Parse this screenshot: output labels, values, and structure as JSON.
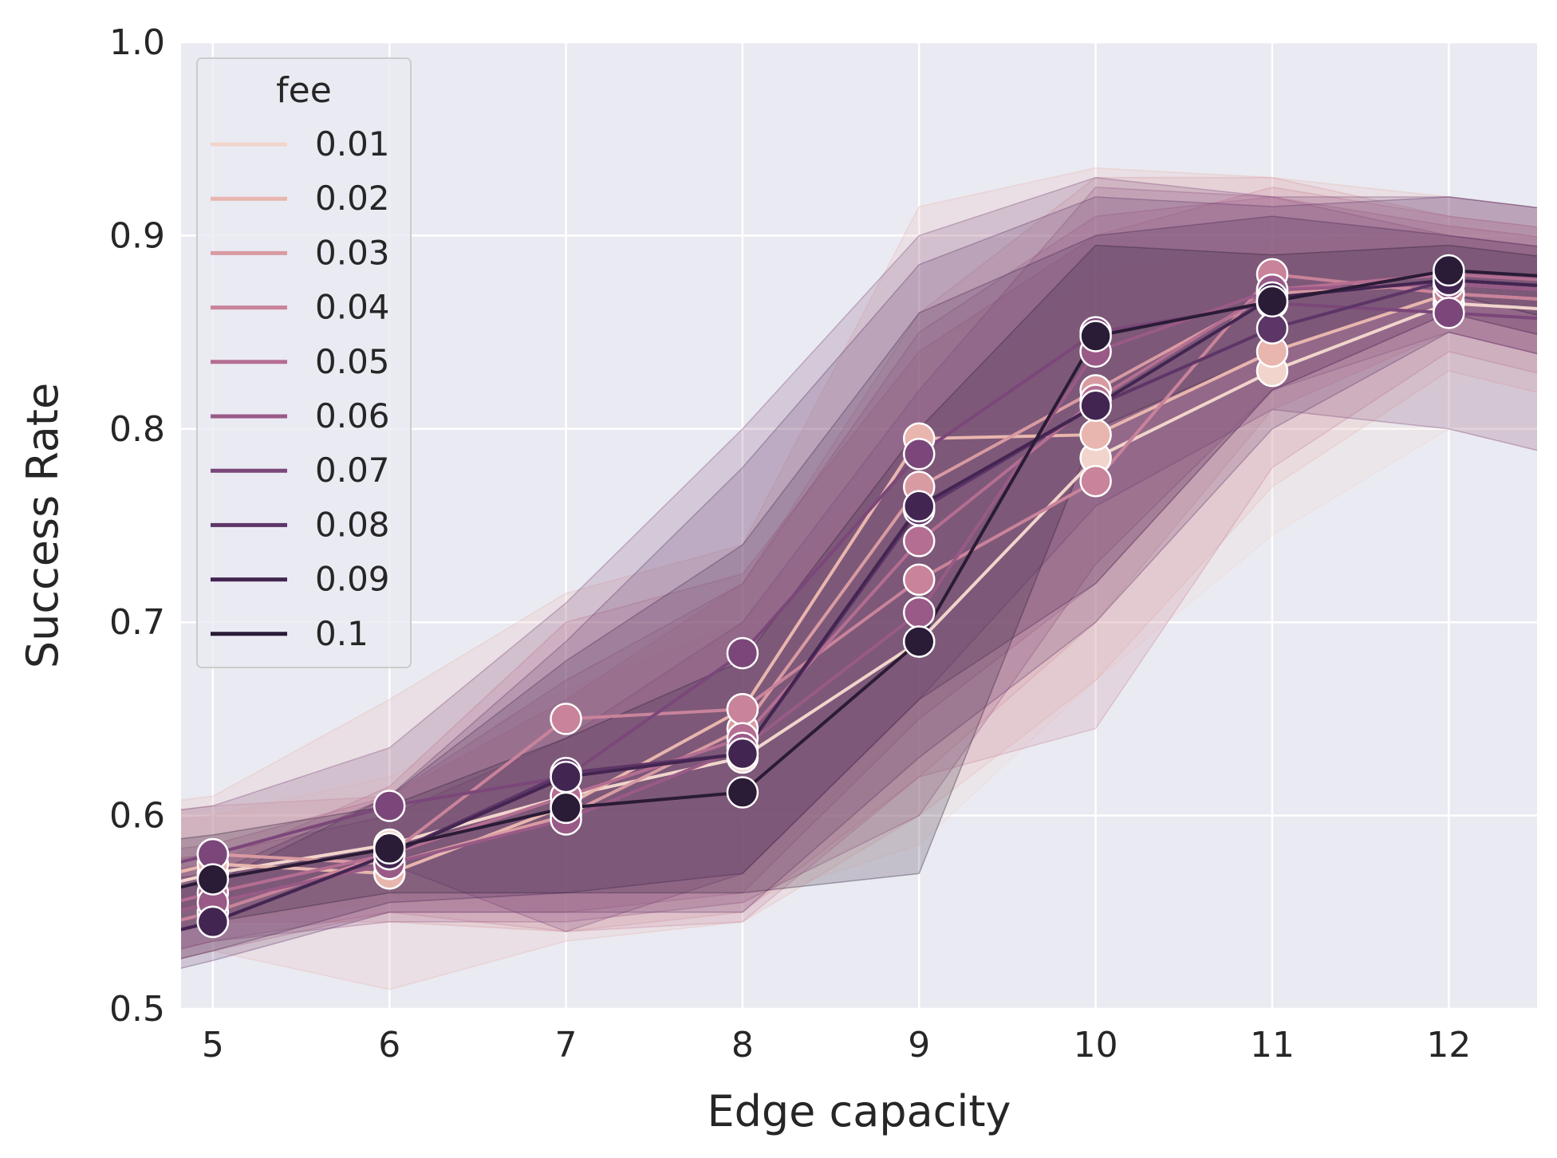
{
  "chart_data": {
    "type": "line",
    "xlabel": "Edge capacity",
    "ylabel": "Success Rate",
    "x": [
      5,
      6,
      7,
      8,
      9,
      10,
      11,
      12
    ],
    "xlim": [
      4.82,
      12.5
    ],
    "ylim": [
      0.5,
      1.0
    ],
    "yticks": [
      "0.5",
      "0.6",
      "0.7",
      "0.8",
      "0.9",
      "1.0"
    ],
    "xticks": [
      "5",
      "6",
      "7",
      "8",
      "9",
      "10",
      "11",
      "12"
    ],
    "grid": true,
    "background": "#eaeaf2",
    "legend": {
      "title": "fee",
      "placement": "top-left"
    },
    "series": [
      {
        "name": "0.01",
        "color": "#f1d5cc",
        "values": [
          0.57,
          0.585,
          0.61,
          0.63,
          0.69,
          0.785,
          0.83,
          0.865
        ],
        "lower": [
          0.545,
          0.555,
          0.55,
          0.555,
          0.585,
          0.67,
          0.745,
          0.8
        ],
        "upper": [
          0.6,
          0.62,
          0.665,
          0.7,
          0.8,
          0.88,
          0.895,
          0.905
        ]
      },
      {
        "name": "0.02",
        "color": "#e8b6ae",
        "values": [
          0.575,
          0.57,
          0.605,
          0.655,
          0.795,
          0.797,
          0.84,
          0.87
        ],
        "lower": [
          0.53,
          0.51,
          0.535,
          0.545,
          0.6,
          0.67,
          0.77,
          0.83
        ],
        "upper": [
          0.61,
          0.66,
          0.715,
          0.74,
          0.915,
          0.935,
          0.93,
          0.92
        ]
      },
      {
        "name": "0.03",
        "color": "#d89ba2",
        "values": [
          0.58,
          0.575,
          0.6,
          0.645,
          0.77,
          0.82,
          0.87,
          0.875
        ],
        "lower": [
          0.545,
          0.545,
          0.54,
          0.55,
          0.62,
          0.7,
          0.81,
          0.85
        ],
        "upper": [
          0.605,
          0.61,
          0.66,
          0.72,
          0.86,
          0.93,
          0.93,
          0.91
        ]
      },
      {
        "name": "0.04",
        "color": "#c9839a",
        "values": [
          0.55,
          0.58,
          0.65,
          0.655,
          0.722,
          0.773,
          0.88,
          0.87
        ],
        "lower": [
          0.53,
          0.55,
          0.54,
          0.545,
          0.62,
          0.645,
          0.78,
          0.84
        ],
        "upper": [
          0.575,
          0.615,
          0.7,
          0.725,
          0.84,
          0.9,
          0.925,
          0.91
        ]
      },
      {
        "name": "0.05",
        "color": "#b46e92",
        "values": [
          0.56,
          0.58,
          0.61,
          0.64,
          0.742,
          0.815,
          0.872,
          0.88
        ],
        "lower": [
          0.535,
          0.55,
          0.55,
          0.56,
          0.65,
          0.72,
          0.82,
          0.86
        ],
        "upper": [
          0.585,
          0.61,
          0.67,
          0.72,
          0.85,
          0.91,
          0.92,
          0.905
        ]
      },
      {
        "name": "0.06",
        "color": "#995a87",
        "values": [
          0.555,
          0.575,
          0.598,
          0.635,
          0.705,
          0.84,
          0.872,
          0.875
        ],
        "lower": [
          0.535,
          0.545,
          0.545,
          0.555,
          0.6,
          0.73,
          0.82,
          0.85
        ],
        "upper": [
          0.58,
          0.6,
          0.64,
          0.7,
          0.82,
          0.925,
          0.92,
          0.9
        ]
      },
      {
        "name": "0.07",
        "color": "#7b477a",
        "values": [
          0.58,
          0.605,
          0.62,
          0.684,
          0.787,
          0.85,
          0.865,
          0.86
        ],
        "lower": [
          0.555,
          0.575,
          0.54,
          0.57,
          0.66,
          0.76,
          0.81,
          0.8
        ],
        "upper": [
          0.605,
          0.635,
          0.71,
          0.8,
          0.9,
          0.93,
          0.92,
          0.92
        ]
      },
      {
        "name": "0.08",
        "color": "#5d3567",
        "values": [
          0.545,
          0.58,
          0.622,
          0.632,
          0.758,
          0.812,
          0.852,
          0.877
        ],
        "lower": [
          0.525,
          0.55,
          0.55,
          0.55,
          0.63,
          0.7,
          0.8,
          0.85
        ],
        "upper": [
          0.57,
          0.61,
          0.69,
          0.78,
          0.885,
          0.92,
          0.915,
          0.92
        ]
      },
      {
        "name": "0.09",
        "color": "#432551",
        "values": [
          0.545,
          0.58,
          0.62,
          0.632,
          0.76,
          0.812,
          0.868,
          0.877
        ],
        "lower": [
          0.53,
          0.555,
          0.56,
          0.57,
          0.66,
          0.72,
          0.82,
          0.86
        ],
        "upper": [
          0.565,
          0.61,
          0.68,
          0.74,
          0.86,
          0.9,
          0.91,
          0.9
        ]
      },
      {
        "name": "0.1",
        "color": "#2a1b36",
        "values": [
          0.567,
          0.583,
          0.604,
          0.612,
          0.69,
          0.848,
          0.866,
          0.882
        ],
        "lower": [
          0.545,
          0.56,
          0.56,
          0.56,
          0.57,
          0.8,
          0.84,
          0.87
        ],
        "upper": [
          0.59,
          0.605,
          0.64,
          0.68,
          0.8,
          0.895,
          0.89,
          0.895
        ]
      }
    ]
  }
}
